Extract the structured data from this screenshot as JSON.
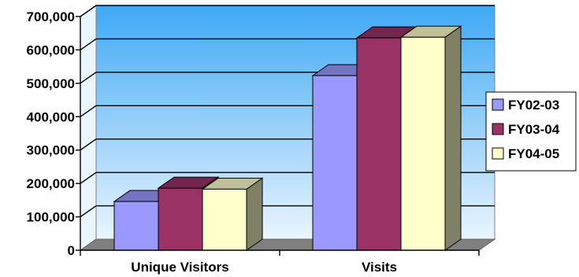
{
  "chart_data": {
    "type": "bar",
    "categories": [
      "Unique Visitors",
      "Visits"
    ],
    "series": [
      {
        "name": "FY02-03",
        "values": [
          146000,
          523000
        ]
      },
      {
        "name": "FY03-04",
        "values": [
          186000,
          636000
        ]
      },
      {
        "name": "FY04-05",
        "values": [
          183000,
          638000
        ]
      }
    ],
    "ylim": [
      0,
      700000
    ],
    "yticks": [
      0,
      100000,
      200000,
      300000,
      400000,
      500000,
      600000,
      700000
    ],
    "ytick_labels": [
      "0",
      "100,000",
      "200,000",
      "300,000",
      "400,000",
      "500,000",
      "600,000",
      "700,000"
    ],
    "grid": true,
    "legend_position": "right",
    "style": "3d-clustered-column",
    "colors": {
      "series": [
        "#9999ff",
        "#993366",
        "#ffffcc"
      ],
      "plot_background_top": "#3fa9f5",
      "plot_background_bottom": "#eaf5ff",
      "floor": "#808080",
      "gridline": "#000000"
    }
  }
}
